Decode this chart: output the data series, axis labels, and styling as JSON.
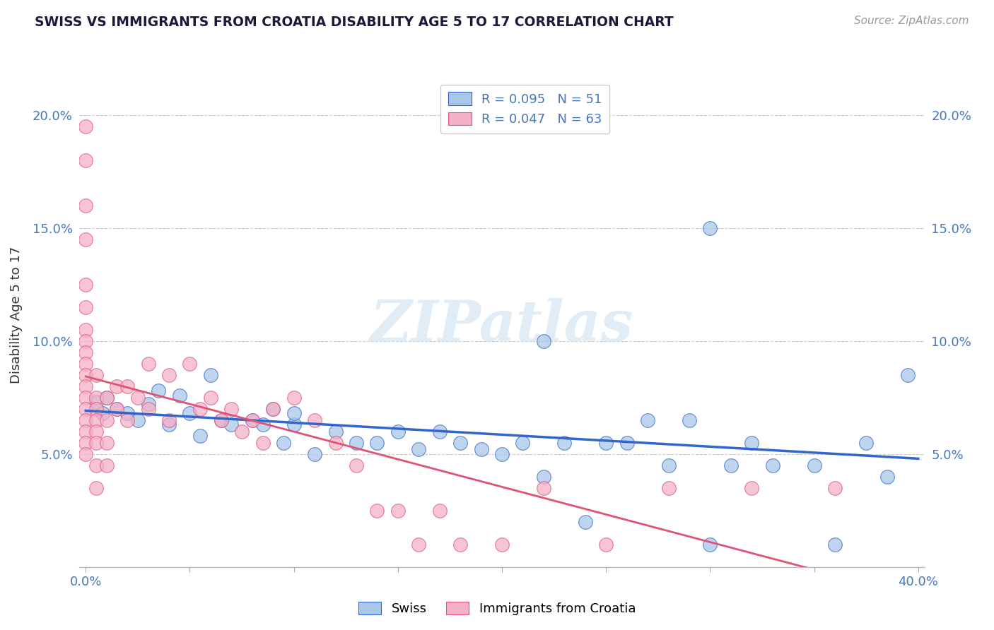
{
  "title": "SWISS VS IMMIGRANTS FROM CROATIA DISABILITY AGE 5 TO 17 CORRELATION CHART",
  "source": "Source: ZipAtlas.com",
  "ylabel": "Disability Age 5 to 17",
  "x_min": 0.0,
  "x_max": 0.4,
  "y_min": 0.0,
  "y_max": 0.22,
  "swiss_color": "#a8c8e8",
  "croatia_color": "#f4b0c8",
  "swiss_line_color": "#3366cc",
  "croatia_line_color": "#e05575",
  "croatia_dashed_color": "#d08090",
  "watermark": "ZIPatlas",
  "swiss_R": "R = 0.095",
  "swiss_N": "N = 51",
  "croatia_R": "R = 0.047",
  "croatia_N": "N = 63",
  "swiss_x": [
    0.005,
    0.008,
    0.01,
    0.015,
    0.02,
    0.025,
    0.03,
    0.035,
    0.04,
    0.045,
    0.05,
    0.055,
    0.06,
    0.065,
    0.07,
    0.08,
    0.085,
    0.09,
    0.095,
    0.1,
    0.1,
    0.11,
    0.12,
    0.13,
    0.14,
    0.15,
    0.16,
    0.17,
    0.18,
    0.19,
    0.2,
    0.21,
    0.22,
    0.23,
    0.24,
    0.25,
    0.26,
    0.27,
    0.28,
    0.29,
    0.3,
    0.31,
    0.32,
    0.33,
    0.35,
    0.36,
    0.375,
    0.385,
    0.395,
    0.22,
    0.3
  ],
  "swiss_y": [
    0.073,
    0.068,
    0.075,
    0.07,
    0.068,
    0.065,
    0.072,
    0.078,
    0.063,
    0.076,
    0.068,
    0.058,
    0.085,
    0.065,
    0.063,
    0.065,
    0.063,
    0.07,
    0.055,
    0.063,
    0.068,
    0.05,
    0.06,
    0.055,
    0.055,
    0.06,
    0.052,
    0.06,
    0.055,
    0.052,
    0.05,
    0.055,
    0.04,
    0.055,
    0.02,
    0.055,
    0.055,
    0.065,
    0.045,
    0.065,
    0.01,
    0.045,
    0.055,
    0.045,
    0.045,
    0.01,
    0.055,
    0.04,
    0.085,
    0.1,
    0.15
  ],
  "croatia_x": [
    0.0,
    0.0,
    0.0,
    0.0,
    0.0,
    0.0,
    0.0,
    0.0,
    0.0,
    0.0,
    0.0,
    0.0,
    0.0,
    0.0,
    0.0,
    0.0,
    0.0,
    0.0,
    0.005,
    0.005,
    0.005,
    0.005,
    0.005,
    0.005,
    0.005,
    0.005,
    0.01,
    0.01,
    0.01,
    0.01,
    0.015,
    0.015,
    0.02,
    0.02,
    0.025,
    0.03,
    0.03,
    0.04,
    0.04,
    0.05,
    0.055,
    0.06,
    0.065,
    0.07,
    0.075,
    0.08,
    0.085,
    0.09,
    0.1,
    0.11,
    0.12,
    0.13,
    0.14,
    0.15,
    0.16,
    0.17,
    0.18,
    0.2,
    0.22,
    0.25,
    0.28,
    0.32,
    0.36
  ],
  "croatia_y": [
    0.195,
    0.18,
    0.16,
    0.145,
    0.125,
    0.115,
    0.105,
    0.1,
    0.095,
    0.09,
    0.085,
    0.08,
    0.075,
    0.07,
    0.065,
    0.06,
    0.055,
    0.05,
    0.085,
    0.075,
    0.07,
    0.065,
    0.06,
    0.055,
    0.045,
    0.035,
    0.075,
    0.065,
    0.055,
    0.045,
    0.08,
    0.07,
    0.08,
    0.065,
    0.075,
    0.09,
    0.07,
    0.085,
    0.065,
    0.09,
    0.07,
    0.075,
    0.065,
    0.07,
    0.06,
    0.065,
    0.055,
    0.07,
    0.075,
    0.065,
    0.055,
    0.045,
    0.025,
    0.025,
    0.01,
    0.025,
    0.01,
    0.01,
    0.035,
    0.01,
    0.035,
    0.035,
    0.035
  ]
}
